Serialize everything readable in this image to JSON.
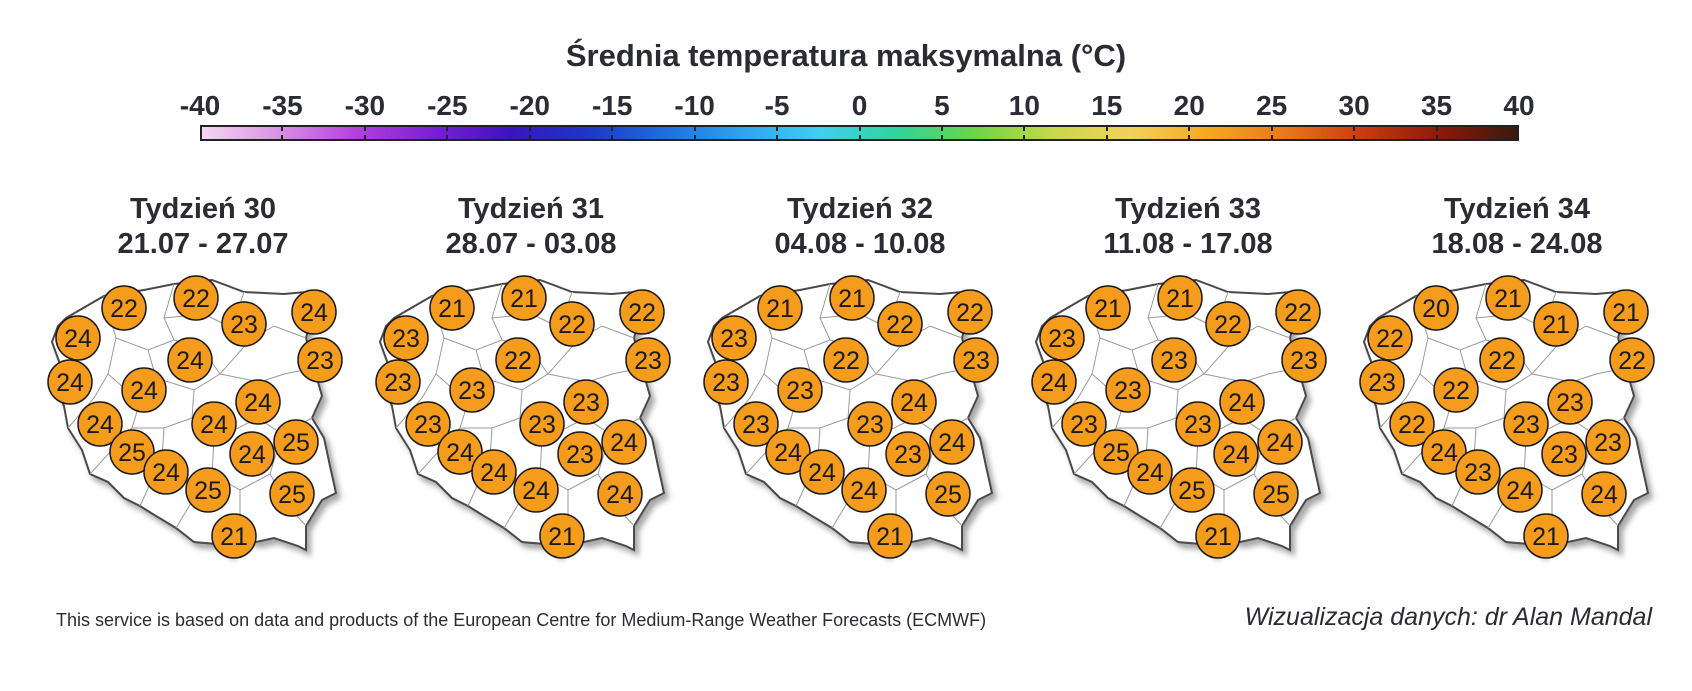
{
  "title": "Średnia temperatura maksymalna (°C)",
  "scale": {
    "min": -40,
    "max": 40,
    "ticks": [
      "-40",
      "-35",
      "-30",
      "-25",
      "-20",
      "-15",
      "-10",
      "-5",
      "0",
      "5",
      "10",
      "15",
      "20",
      "25",
      "30",
      "35",
      "40"
    ],
    "gradient": [
      "#f2d7f2",
      "#d890e6",
      "#b33fdd",
      "#7a1fd6",
      "#3a14c0",
      "#1c38c8",
      "#1f6fe0",
      "#2ea4ef",
      "#3fd0f0",
      "#2fd59a",
      "#6cd448",
      "#c8d84a",
      "#f2d25a",
      "#f4a91e",
      "#e8791a",
      "#cc3a10",
      "#8a1a0a",
      "#3b1a10"
    ]
  },
  "bubble_color": "#f59c1c",
  "weeks": [
    {
      "label": "Tydzień 30",
      "dates": "21.07 - 27.07",
      "values": [
        22,
        22,
        23,
        24,
        24,
        23,
        24,
        24,
        24,
        24,
        24,
        24,
        25,
        25,
        24,
        24,
        25,
        25,
        21
      ]
    },
    {
      "label": "Tydzień 31",
      "dates": "28.07 - 03.08",
      "values": [
        21,
        21,
        22,
        22,
        23,
        23,
        22,
        23,
        23,
        23,
        23,
        23,
        24,
        24,
        24,
        23,
        24,
        24,
        21
      ]
    },
    {
      "label": "Tydzień 32",
      "dates": "04.08 - 10.08",
      "values": [
        21,
        21,
        22,
        22,
        23,
        23,
        22,
        23,
        23,
        24,
        23,
        23,
        24,
        24,
        24,
        23,
        24,
        25,
        21
      ]
    },
    {
      "label": "Tydzień 33",
      "dates": "11.08 - 17.08",
      "values": [
        21,
        21,
        22,
        22,
        23,
        23,
        23,
        24,
        23,
        24,
        23,
        23,
        24,
        25,
        24,
        24,
        25,
        25,
        21
      ]
    },
    {
      "label": "Tydzień 34",
      "dates": "18.08 - 24.08",
      "values": [
        20,
        21,
        21,
        21,
        22,
        22,
        22,
        23,
        22,
        23,
        22,
        23,
        23,
        24,
        23,
        23,
        24,
        24,
        21
      ]
    }
  ],
  "footer": {
    "left": "This service is based on data and products of the European Centre for Medium-Range Weather Forecasts (ECMWF)",
    "right": "Wizualizacja danych: dr Alan Mandal"
  }
}
